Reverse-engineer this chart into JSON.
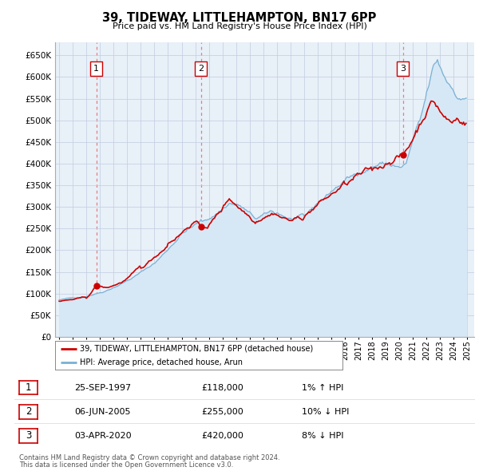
{
  "title": "39, TIDEWAY, LITTLEHAMPTON, BN17 6PP",
  "subtitle": "Price paid vs. HM Land Registry's House Price Index (HPI)",
  "red_line_color": "#cc0000",
  "blue_line_color": "#7ab0d4",
  "blue_fill_color": "#d6e8f5",
  "background_color": "#e8f0f8",
  "grid_color": "#c0cce0",
  "vline_color": "#e87070",
  "ylim": [
    0,
    680000
  ],
  "xlim": [
    1994.7,
    2025.5
  ],
  "yticks": [
    0,
    50000,
    100000,
    150000,
    200000,
    250000,
    300000,
    350000,
    400000,
    450000,
    500000,
    550000,
    600000,
    650000
  ],
  "xticks": [
    1995,
    1996,
    1997,
    1998,
    1999,
    2000,
    2001,
    2002,
    2003,
    2004,
    2005,
    2006,
    2007,
    2008,
    2009,
    2010,
    2011,
    2012,
    2013,
    2014,
    2015,
    2016,
    2017,
    2018,
    2019,
    2020,
    2021,
    2022,
    2023,
    2024,
    2025
  ],
  "vline_years": [
    1997.73,
    2005.42,
    2020.25
  ],
  "sale_points": [
    {
      "year": 1997.73,
      "price": 118000,
      "label": "1"
    },
    {
      "year": 2005.42,
      "price": 255000,
      "label": "2"
    },
    {
      "year": 2020.25,
      "price": 420000,
      "label": "3"
    }
  ],
  "legend_entries": [
    "39, TIDEWAY, LITTLEHAMPTON, BN17 6PP (detached house)",
    "HPI: Average price, detached house, Arun"
  ],
  "table_data": [
    {
      "num": "1",
      "date": "25-SEP-1997",
      "price": "£118,000",
      "hpi": "1% ↑ HPI"
    },
    {
      "num": "2",
      "date": "06-JUN-2005",
      "price": "£255,000",
      "hpi": "10% ↓ HPI"
    },
    {
      "num": "3",
      "date": "03-APR-2020",
      "price": "£420,000",
      "hpi": "8% ↓ HPI"
    }
  ],
  "footnote1": "Contains HM Land Registry data © Crown copyright and database right 2024.",
  "footnote2": "This data is licensed under the Open Government Licence v3.0."
}
